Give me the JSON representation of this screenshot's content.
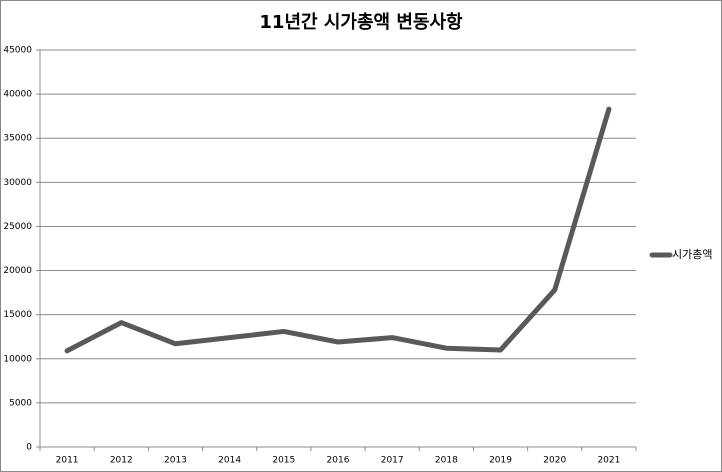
{
  "chart_data": {
    "type": "line",
    "title": "11년간 시가총액 변동사항",
    "categories": [
      "2011",
      "2012",
      "2013",
      "2014",
      "2015",
      "2016",
      "2017",
      "2018",
      "2019",
      "2020",
      "2021"
    ],
    "series": [
      {
        "name": "시가총액",
        "color": "#595959",
        "values": [
          10900,
          14100,
          11700,
          12400,
          13100,
          11900,
          12400,
          11200,
          11000,
          17800,
          38300
        ]
      }
    ],
    "ylim": [
      0,
      45000
    ],
    "yticks": [
      0,
      5000,
      10000,
      15000,
      20000,
      25000,
      30000,
      35000,
      40000,
      45000
    ],
    "grid": true,
    "legend": "right"
  }
}
